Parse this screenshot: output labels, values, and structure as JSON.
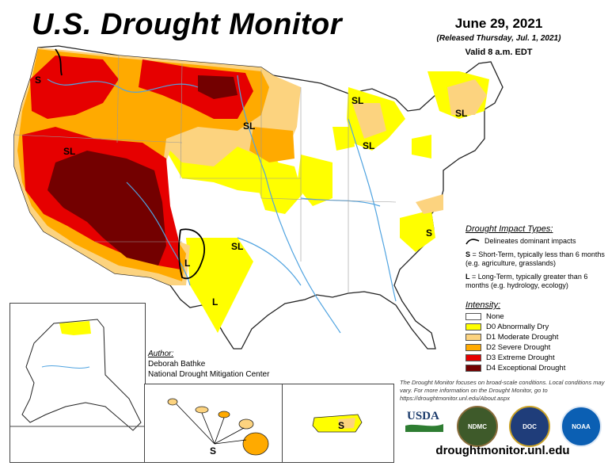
{
  "title": "U.S. Drought Monitor",
  "date": "June 29, 2021",
  "released": "(Released Thursday, Jul. 1, 2021)",
  "valid": "Valid 8 a.m. EDT",
  "colors": {
    "none": "#ffffff",
    "d0": "#ffff00",
    "d1": "#fcd37f",
    "d2": "#ffaa00",
    "d3": "#e60000",
    "d4": "#730000",
    "water": "#4fa3e0"
  },
  "impact": {
    "header": "Drought Impact Types:",
    "line_desc": "Delineates dominant impacts",
    "s_code": "S",
    "s_desc": " = Short-Term, typically less than 6 months (e.g. agriculture, grasslands)",
    "l_code": "L",
    "l_desc": " = Long-Term, typically greater than 6 months (e.g. hydrology, ecology)"
  },
  "intensity": {
    "header": "Intensity:",
    "items": [
      {
        "label": "None",
        "color": "#ffffff"
      },
      {
        "label": "D0 Abnormally Dry",
        "color": "#ffff00"
      },
      {
        "label": "D1 Moderate Drought",
        "color": "#fcd37f"
      },
      {
        "label": "D2 Severe Drought",
        "color": "#ffaa00"
      },
      {
        "label": "D3 Extreme Drought",
        "color": "#e60000"
      },
      {
        "label": "D4 Exceptional Drought",
        "color": "#730000"
      }
    ]
  },
  "author": {
    "header": "Author:",
    "name": "Deborah Bathke",
    "org": "National Drought Mitigation Center"
  },
  "disclaimer": "The Drought Monitor focuses on broad-scale conditions. Local conditions may vary. For more information on the Drought Monitor, go to https://droughtmonitor.unl.edu/About.aspx",
  "url": "droughtmonitor.unl.edu",
  "map_labels": {
    "sl_nw": "SL",
    "s_wa": "S",
    "sl_nv": "SL",
    "sl_nd": "SL",
    "sl_mi_n": "SL",
    "sl_mi": "SL",
    "sl_ne": "SL",
    "s_nc": "S",
    "sl_ok": "SL",
    "l_nm": "L",
    "l_tx": "L",
    "s_hi": "S",
    "s_pr": "S"
  },
  "logos": {
    "usda": "USDA",
    "ndmc": "NDMC",
    "doc": "DOC",
    "noaa": "NOAA"
  }
}
